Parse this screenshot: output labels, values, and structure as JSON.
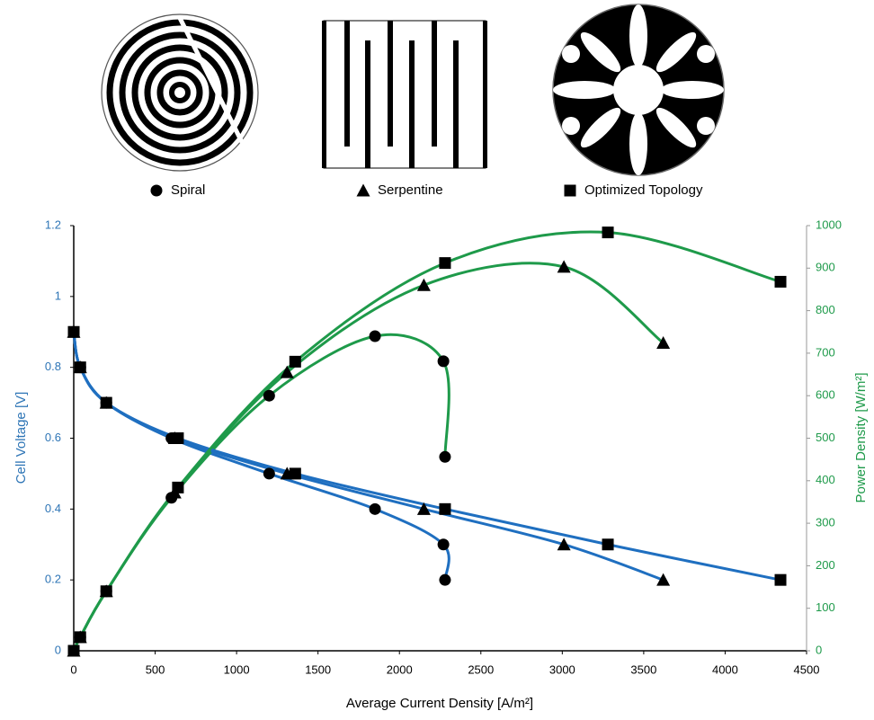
{
  "chart_data": {
    "type": "line",
    "xlabel": "Average Current Density [A/m²]",
    "ylabel": "Cell Voltage [V]",
    "y2label": "Power Density [W/m²]",
    "voltage_color": "#1f6fc0",
    "power_color": "#1e9a4a",
    "xlim": [
      0,
      4500
    ],
    "xticks": [
      0,
      500,
      1000,
      1500,
      2000,
      2500,
      3000,
      3500,
      4000,
      4500
    ],
    "ylim": [
      0,
      1.2
    ],
    "yticks": [
      0,
      0.2,
      0.4,
      0.6,
      0.8,
      1,
      1.2
    ],
    "y2lim": [
      0,
      1000
    ],
    "y2ticks": [
      0,
      100,
      200,
      300,
      400,
      500,
      600,
      700,
      800,
      900,
      1000
    ],
    "series": [
      {
        "name": "Spiral",
        "marker": "circle",
        "x": [
          0,
          40,
          200,
          600,
          1200,
          1850,
          2270,
          2280
        ],
        "voltage": [
          0.9,
          0.8,
          0.7,
          0.6,
          0.5,
          0.4,
          0.3,
          0.2
        ],
        "power": [
          0,
          32,
          140,
          360,
          600,
          740,
          681,
          456
        ]
      },
      {
        "name": "Serpentine",
        "marker": "triangle",
        "x": [
          0,
          40,
          200,
          620,
          1310,
          2150,
          3010,
          3620
        ],
        "voltage": [
          0.9,
          0.8,
          0.7,
          0.6,
          0.5,
          0.4,
          0.3,
          0.2
        ],
        "power": [
          0,
          32,
          140,
          372,
          655,
          860,
          903,
          724
        ]
      },
      {
        "name": "Optimized Topology",
        "marker": "square",
        "x": [
          0,
          40,
          200,
          640,
          1360,
          2280,
          3280,
          4340
        ],
        "voltage": [
          0.9,
          0.8,
          0.7,
          0.6,
          0.5,
          0.4,
          0.3,
          0.2
        ],
        "power": [
          0,
          32,
          140,
          384,
          680,
          912,
          984,
          868
        ]
      }
    ]
  }
}
